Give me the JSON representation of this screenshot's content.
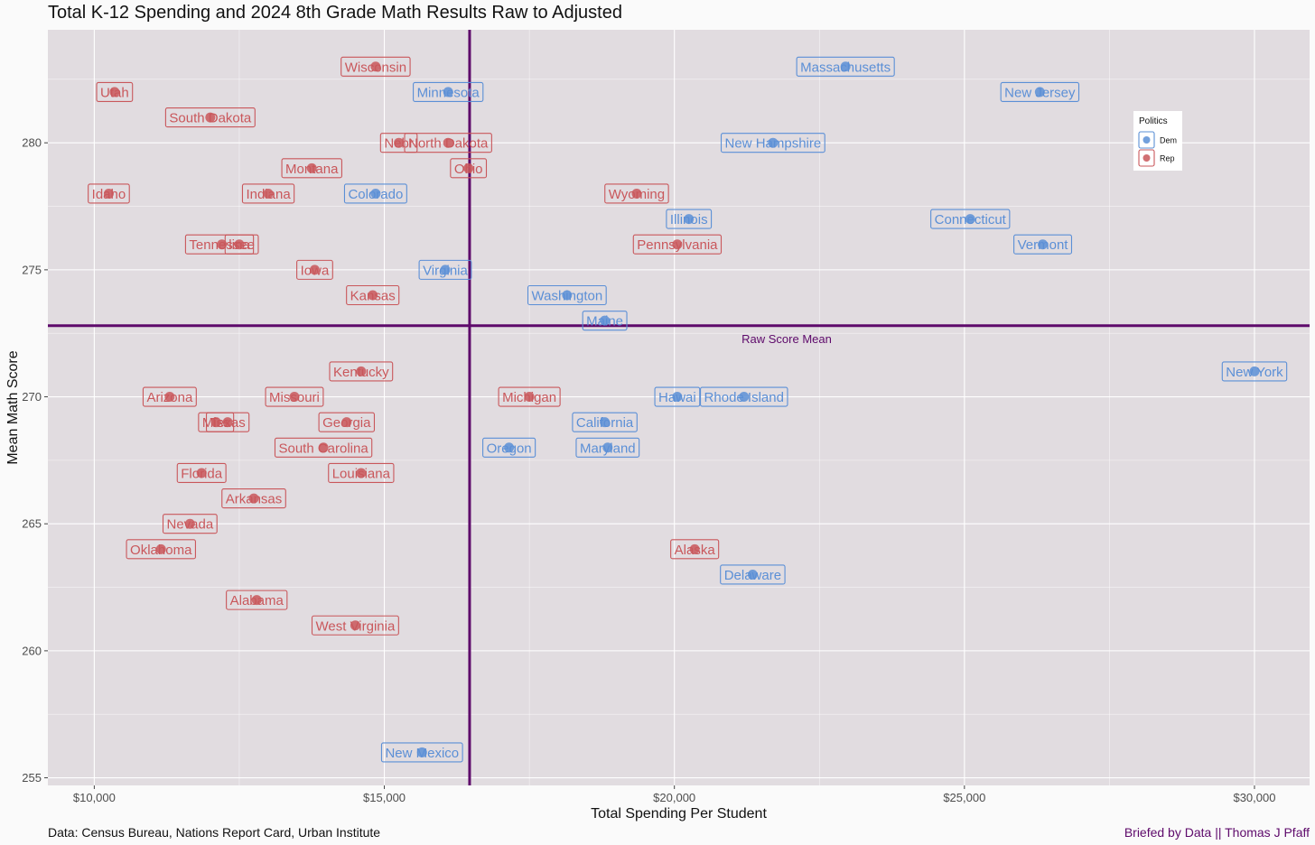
{
  "chart_data": {
    "type": "scatter",
    "title": "Total K-12 Spending and 2024 8th Grade Math Results Raw to Adjusted",
    "xlabel": "Total Spending Per Student",
    "ylabel": "Mean Math Score",
    "xlim": [
      9200,
      30950
    ],
    "ylim": [
      254.7,
      284.45
    ],
    "x_ticks": [
      10000,
      15000,
      20000,
      25000,
      30000
    ],
    "x_tick_labels": [
      "$10,000",
      "$15,000",
      "$20,000",
      "$25,000",
      "$30,000"
    ],
    "y_ticks": [
      255,
      260,
      265,
      270,
      275,
      280
    ],
    "y_tick_labels": [
      "255",
      "260",
      "265",
      "270",
      "275",
      "280"
    ],
    "grid": true,
    "reference_lines": {
      "x_mean": 16470,
      "y_mean": 272.8,
      "y_mean_label": "Raw Score Mean"
    },
    "legend": {
      "title": "Politics",
      "placement": "top-right inside",
      "entries": [
        {
          "key": "Dem",
          "label": "Dem",
          "color": "#5b8fd6"
        },
        {
          "key": "Rep",
          "label": "Rep",
          "color": "#c9575b"
        }
      ]
    },
    "points": [
      {
        "label": "Wisconsin",
        "x": 14850,
        "y": 283,
        "party": "Rep"
      },
      {
        "label": "Massachusetts",
        "x": 22950,
        "y": 283,
        "party": "Dem"
      },
      {
        "label": "Utah",
        "x": 10350,
        "y": 282,
        "party": "Rep"
      },
      {
        "label": "Minnesota",
        "x": 16100,
        "y": 282,
        "party": "Dem"
      },
      {
        "label": "New Jersey",
        "x": 26300,
        "y": 282,
        "party": "Dem"
      },
      {
        "label": "South Dakota",
        "x": 12000,
        "y": 281,
        "party": "Rep"
      },
      {
        "label": "Nebraska",
        "x": 15250,
        "y": 280,
        "party": "Rep",
        "shown": "Nebr"
      },
      {
        "label": "North Dakota",
        "x": 16100,
        "y": 280,
        "party": "Rep"
      },
      {
        "label": "New Hampshire",
        "x": 21700,
        "y": 280,
        "party": "Dem"
      },
      {
        "label": "Montana",
        "x": 13750,
        "y": 279,
        "party": "Rep"
      },
      {
        "label": "Ohio",
        "x": 16450,
        "y": 279,
        "party": "Rep"
      },
      {
        "label": "Idaho",
        "x": 10250,
        "y": 278,
        "party": "Rep"
      },
      {
        "label": "Indiana",
        "x": 13000,
        "y": 278,
        "party": "Rep"
      },
      {
        "label": "Colorado",
        "x": 14850,
        "y": 278,
        "party": "Dem"
      },
      {
        "label": "Wyoming",
        "x": 19350,
        "y": 278,
        "party": "Rep"
      },
      {
        "label": "Illinois",
        "x": 20250,
        "y": 277,
        "party": "Dem"
      },
      {
        "label": "Connecticut",
        "x": 25100,
        "y": 277,
        "party": "Dem"
      },
      {
        "label": "Tennessee",
        "x": 12200,
        "y": 276,
        "party": "Rep"
      },
      {
        "label": "North Carolina",
        "x": 12500,
        "y": 276,
        "party": "Rep",
        "shown": "lina"
      },
      {
        "label": "Pennsylvania",
        "x": 20050,
        "y": 276,
        "party": "Rep"
      },
      {
        "label": "Vermont",
        "x": 26350,
        "y": 276,
        "party": "Dem"
      },
      {
        "label": "Iowa",
        "x": 13800,
        "y": 275,
        "party": "Rep"
      },
      {
        "label": "Virginia",
        "x": 16050,
        "y": 275,
        "party": "Dem"
      },
      {
        "label": "Kansas",
        "x": 14800,
        "y": 274,
        "party": "Rep"
      },
      {
        "label": "Washington",
        "x": 18150,
        "y": 274,
        "party": "Dem"
      },
      {
        "label": "Maine",
        "x": 18800,
        "y": 273,
        "party": "Dem"
      },
      {
        "label": "New York",
        "x": 30000,
        "y": 271,
        "party": "Dem"
      },
      {
        "label": "Kentucky",
        "x": 14600,
        "y": 271,
        "party": "Rep"
      },
      {
        "label": "Arizona",
        "x": 11300,
        "y": 270,
        "party": "Rep"
      },
      {
        "label": "Missouri",
        "x": 13450,
        "y": 270,
        "party": "Rep"
      },
      {
        "label": "Michigan",
        "x": 17500,
        "y": 270,
        "party": "Rep"
      },
      {
        "label": "Hawaii",
        "x": 20050,
        "y": 270,
        "party": "Dem",
        "shown": "Hawai"
      },
      {
        "label": "Rhode Island",
        "x": 21200,
        "y": 270,
        "party": "Dem"
      },
      {
        "label": "Mississippi",
        "x": 12100,
        "y": 269,
        "party": "Rep",
        "shown": "Miss"
      },
      {
        "label": "Texas",
        "x": 12300,
        "y": 269,
        "party": "Rep"
      },
      {
        "label": "Georgia",
        "x": 14350,
        "y": 269,
        "party": "Rep"
      },
      {
        "label": "California",
        "x": 18800,
        "y": 269,
        "party": "Dem"
      },
      {
        "label": "South Carolina",
        "x": 13950,
        "y": 268,
        "party": "Rep"
      },
      {
        "label": "Oregon",
        "x": 17150,
        "y": 268,
        "party": "Dem"
      },
      {
        "label": "Maryland",
        "x": 18850,
        "y": 268,
        "party": "Dem"
      },
      {
        "label": "Florida",
        "x": 11850,
        "y": 267,
        "party": "Rep"
      },
      {
        "label": "Louisiana",
        "x": 14600,
        "y": 267,
        "party": "Rep"
      },
      {
        "label": "Arkansas",
        "x": 12750,
        "y": 266,
        "party": "Rep"
      },
      {
        "label": "Nevada",
        "x": 11650,
        "y": 265,
        "party": "Rep"
      },
      {
        "label": "Oklahoma",
        "x": 11150,
        "y": 264,
        "party": "Rep"
      },
      {
        "label": "Alaska",
        "x": 20350,
        "y": 264,
        "party": "Rep"
      },
      {
        "label": "Delaware",
        "x": 21350,
        "y": 263,
        "party": "Dem"
      },
      {
        "label": "Alabama",
        "x": 12800,
        "y": 262,
        "party": "Rep"
      },
      {
        "label": "West Virginia",
        "x": 14500,
        "y": 261,
        "party": "Rep"
      },
      {
        "label": "New Mexico",
        "x": 15650,
        "y": 256,
        "party": "Dem"
      }
    ]
  },
  "caption_left": "Data: Census Bureau, Nations Report Card, Urban Institute",
  "caption_right": "Briefed by Data || Thomas J Pfaff",
  "colors": {
    "panel_bg": "#e1dce0",
    "page_bg": "#fafafa",
    "grid": "#ffffff",
    "mean_line": "#5e0a6b",
    "dem": "#5b8fd6",
    "rep": "#c9575b"
  }
}
